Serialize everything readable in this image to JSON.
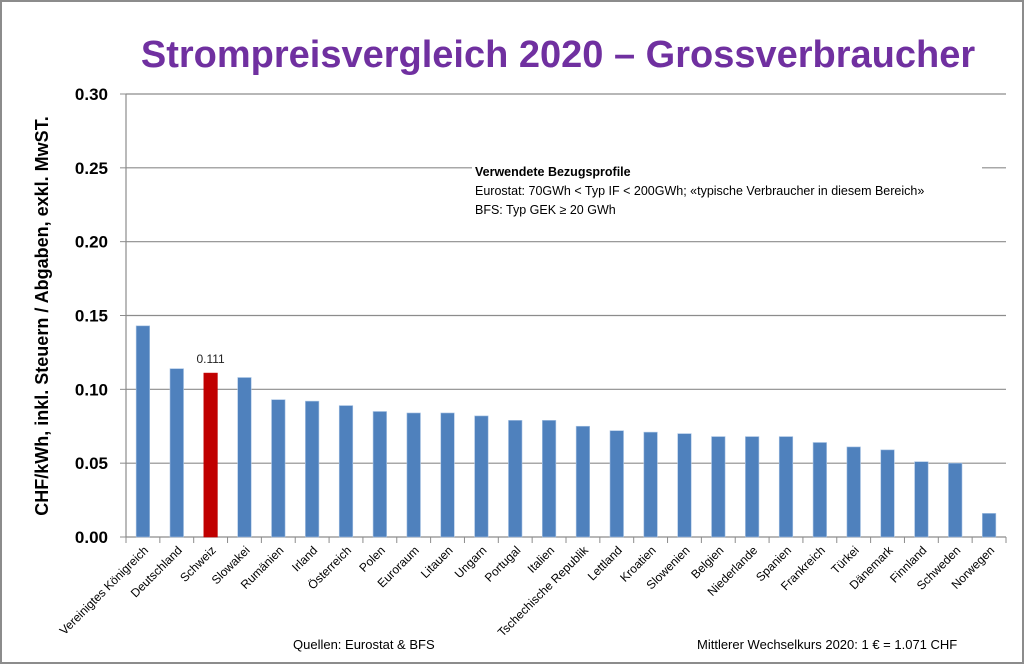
{
  "chart_data": {
    "type": "bar",
    "title": "Strompreisvergleich 2020 – Grossverbraucher",
    "xlabel": "",
    "ylabel": "CHF/kWh, inkl. Steuern / Abgaben, exkl. MwST.",
    "ylim": [
      0,
      0.3
    ],
    "yticks": [
      "0.00",
      "0.05",
      "0.10",
      "0.15",
      "0.20",
      "0.25",
      "0.30"
    ],
    "ytick_values": [
      0,
      0.05,
      0.1,
      0.15,
      0.2,
      0.25,
      0.3
    ],
    "grid": true,
    "legend": "none",
    "categories": [
      "Vereinigtes Königreich",
      "Deutschland",
      "Schweiz",
      "Slowakei",
      "Rumänien",
      "Irland",
      "Österreich",
      "Polen",
      "Euroraum",
      "Litauen",
      "Ungarn",
      "Portugal",
      "Italien",
      "Tschechische Republik",
      "Lettland",
      "Kroatien",
      "Slowenien",
      "Belgien",
      "Niederlande",
      "Spanien",
      "Frankreich",
      "Türkei",
      "Dänemark",
      "Finnland",
      "Schweden",
      "Norwegen"
    ],
    "values": [
      0.143,
      0.114,
      0.111,
      0.108,
      0.093,
      0.092,
      0.089,
      0.085,
      0.084,
      0.084,
      0.082,
      0.079,
      0.079,
      0.075,
      0.072,
      0.071,
      0.07,
      0.068,
      0.068,
      0.068,
      0.064,
      0.061,
      0.059,
      0.051,
      0.05,
      0.016
    ],
    "highlight": {
      "category": "Schweiz",
      "label": "0.111",
      "color": "#c00000"
    },
    "bar_color": "#4f81bd",
    "annotations": {
      "profile_title": "Verwendete Bezugsprofile",
      "profile_line1": "Eurostat: 70GWh < Typ IF < 200GWh; «typische Verbraucher in diesem Bereich»",
      "profile_line2": "BFS: Typ GEK  ≥ 20 GWh"
    }
  },
  "footer": {
    "sources": "Quellen: Eurostat & BFS",
    "exchange_rate": "Mittlerer Wechselkurs 2020: 1 € = 1.071 CHF"
  },
  "colors": {
    "title": "#7030a0",
    "bar": "#4f81bd",
    "highlight": "#c00000",
    "grid": "#8c8c8c"
  }
}
